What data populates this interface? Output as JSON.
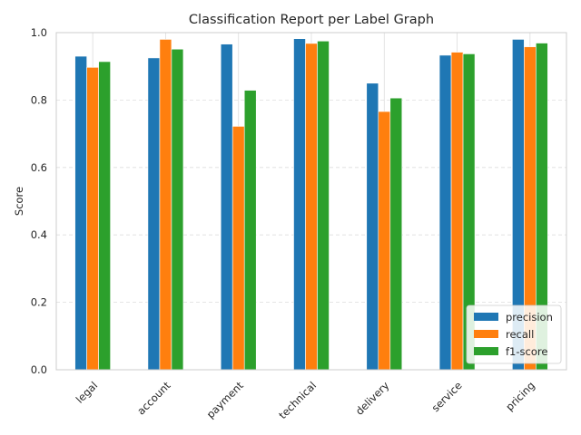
{
  "chart_data": {
    "type": "bar",
    "title": "Classification Report per Label Graph",
    "xlabel": "",
    "ylabel": "Score",
    "ylim": [
      0,
      1.0
    ],
    "yticks": [
      "0.0",
      "0.2",
      "0.4",
      "0.6",
      "0.8",
      "1.0"
    ],
    "grid": true,
    "legend_position": "bottom-right",
    "categories": [
      "legal",
      "account",
      "payment",
      "technical",
      "delivery",
      "service",
      "pricing"
    ],
    "series": [
      {
        "name": "precision",
        "color": "#1f77b4",
        "values": [
          0.93,
          0.925,
          0.966,
          0.982,
          0.85,
          0.933,
          0.98
        ]
      },
      {
        "name": "recall",
        "color": "#ff7f0e",
        "values": [
          0.897,
          0.98,
          0.722,
          0.968,
          0.766,
          0.942,
          0.958
        ]
      },
      {
        "name": "f1-score",
        "color": "#2ca02c",
        "values": [
          0.914,
          0.951,
          0.829,
          0.975,
          0.806,
          0.937,
          0.969
        ]
      }
    ]
  }
}
